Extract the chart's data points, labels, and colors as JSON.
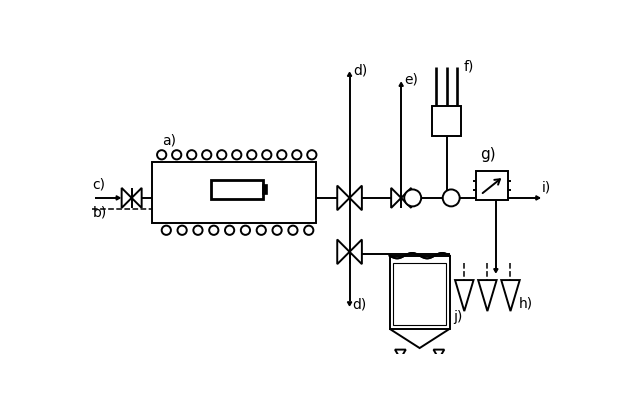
{
  "bg_color": "#ffffff",
  "line_color": "#000000",
  "label_a": "a)",
  "label_b": "b)",
  "label_c": "c)",
  "label_d": "d)",
  "label_e": "e)",
  "label_f": "f)",
  "label_g": "g)",
  "label_h": "h)",
  "label_i": "i)",
  "label_j": "j)",
  "font_size": 10
}
